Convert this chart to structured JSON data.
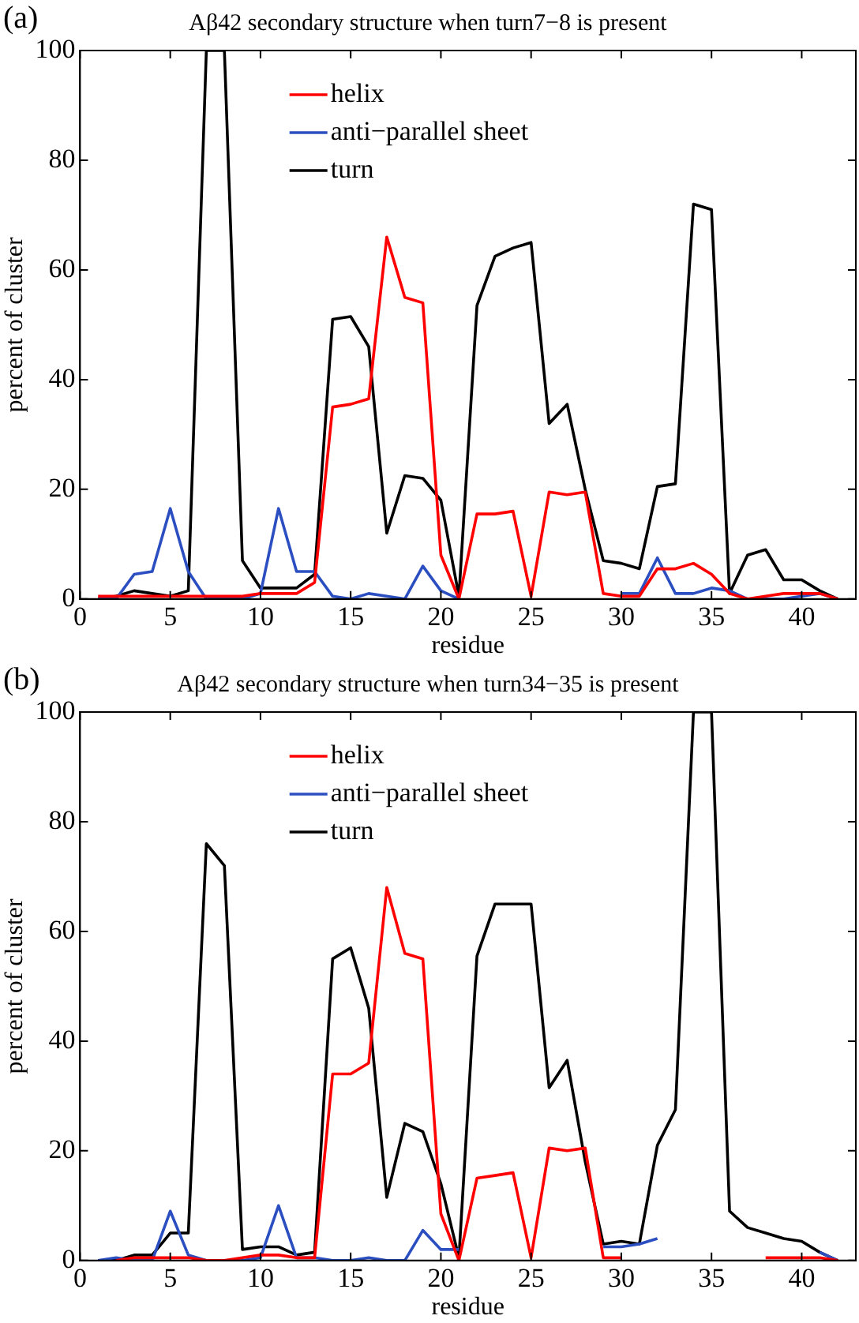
{
  "chart_data": [
    {
      "type": "line",
      "title": "Aβ42 secondary structure when turn7−8 is present",
      "xlabel": "residue",
      "ylabel": "percent of cluster",
      "annotations": [
        "(a)"
      ],
      "legend": "top",
      "grid": false,
      "x": [
        1,
        2,
        3,
        4,
        5,
        6,
        7,
        8,
        9,
        10,
        11,
        12,
        13,
        14,
        15,
        16,
        17,
        18,
        19,
        20,
        21,
        22,
        23,
        24,
        25,
        26,
        27,
        28,
        29,
        30,
        31,
        32,
        33,
        34,
        35,
        36,
        37,
        38,
        39,
        40,
        41,
        42
      ],
      "xlim": [
        0,
        43
      ],
      "xticks": [
        0,
        5,
        10,
        15,
        20,
        25,
        30,
        35,
        40
      ],
      "ylim": [
        0,
        100
      ],
      "yticks": [
        0,
        20,
        40,
        60,
        80,
        100
      ],
      "series": [
        {
          "name": "helix",
          "color": "#ff0000",
          "values": [
            0.5,
            0.5,
            0.5,
            0.5,
            0.5,
            0.5,
            0.5,
            0.5,
            0.5,
            1,
            1,
            1,
            3,
            35,
            35.5,
            36.5,
            66,
            55,
            54,
            8,
            0,
            15.5,
            15.5,
            16,
            0.5,
            19.5,
            19,
            19.5,
            1,
            0.5,
            0.5,
            5.5,
            5.5,
            6.5,
            4.5,
            1,
            0,
            0.5,
            1,
            1,
            1,
            0
          ]
        },
        {
          "name": "anti−parallel sheet",
          "color": "#2b4fc0",
          "values": [
            0,
            0,
            4.5,
            5,
            16.5,
            5,
            0,
            0,
            0,
            1,
            16.5,
            5,
            5,
            0.5,
            0,
            1,
            0.5,
            0,
            6,
            1.5,
            0,
            null,
            null,
            null,
            null,
            null,
            null,
            null,
            null,
            1,
            1,
            7.5,
            1,
            1,
            2,
            1.5,
            0,
            0,
            0,
            0.5,
            1,
            0
          ]
        },
        {
          "name": "turn",
          "color": "#000000",
          "values": [
            0,
            0.5,
            1.5,
            1,
            0.5,
            1.5,
            100,
            100,
            7,
            2,
            2,
            2,
            4.5,
            51,
            51.5,
            46,
            12,
            22.5,
            22,
            18,
            0.5,
            53.5,
            62.5,
            64,
            65,
            32,
            35.5,
            20,
            7,
            6.5,
            5.5,
            20.5,
            21,
            72,
            71,
            1,
            8,
            9,
            3.5,
            3.5,
            1.5,
            0
          ]
        }
      ]
    },
    {
      "type": "line",
      "title": "Aβ42 secondary structure when turn34−35 is present",
      "xlabel": "residue",
      "ylabel": "percent of cluster",
      "annotations": [
        "(b)"
      ],
      "legend": "top",
      "grid": false,
      "x": [
        1,
        2,
        3,
        4,
        5,
        6,
        7,
        8,
        9,
        10,
        11,
        12,
        13,
        14,
        15,
        16,
        17,
        18,
        19,
        20,
        21,
        22,
        23,
        24,
        25,
        26,
        27,
        28,
        29,
        30,
        31,
        32,
        33,
        34,
        35,
        36,
        37,
        38,
        39,
        40,
        41,
        42
      ],
      "xlim": [
        0,
        43
      ],
      "xticks": [
        0,
        5,
        10,
        15,
        20,
        25,
        30,
        35,
        40
      ],
      "ylim": [
        0,
        100
      ],
      "yticks": [
        0,
        20,
        40,
        60,
        80,
        100
      ],
      "series": [
        {
          "name": "helix",
          "color": "#ff0000",
          "values": [
            null,
            0,
            0.5,
            0.5,
            0.5,
            0.5,
            0,
            0,
            0.5,
            1,
            1,
            0.5,
            0.5,
            34,
            34,
            36,
            68,
            56,
            55,
            8.5,
            0,
            15,
            15.5,
            16,
            0.5,
            20.5,
            20,
            20.5,
            0.5,
            0.5,
            null,
            null,
            null,
            null,
            null,
            null,
            null,
            0.5,
            0.5,
            0.5,
            0.5,
            0
          ]
        },
        {
          "name": "anti−parallel sheet",
          "color": "#2b4fc0",
          "values": [
            0,
            0.5,
            0,
            0,
            9,
            1,
            0,
            0,
            0,
            0.5,
            10,
            0.5,
            0.5,
            0,
            0,
            0.5,
            0,
            0,
            5.5,
            2,
            2,
            null,
            null,
            null,
            null,
            null,
            null,
            null,
            2.5,
            2.5,
            3,
            4,
            null,
            null,
            null,
            null,
            null,
            null,
            null,
            null,
            1.5,
            0
          ]
        },
        {
          "name": "turn",
          "color": "#000000",
          "values": [
            0,
            0,
            1,
            1,
            5,
            5,
            76,
            72,
            2,
            2.5,
            2.5,
            1,
            1.5,
            55,
            57,
            46,
            11.5,
            25,
            23.5,
            14,
            0.5,
            55.5,
            65,
            65,
            65,
            31.5,
            36.5,
            18,
            3,
            3.5,
            3,
            21,
            27.5,
            100,
            100,
            9,
            6,
            5,
            4,
            3.5,
            1.5,
            0
          ]
        }
      ]
    }
  ]
}
